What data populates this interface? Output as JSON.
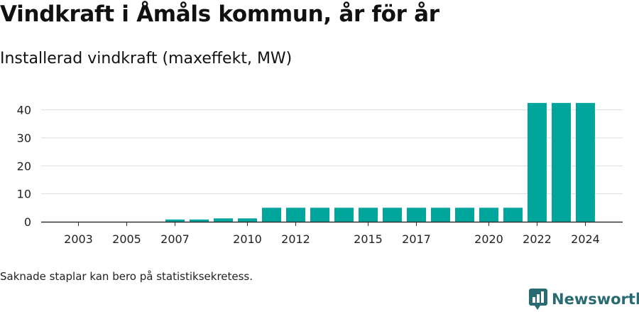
{
  "title": "Vindkraft i Åmåls kommun, år för år",
  "subtitle": "Installerad vindkraft (maxeffekt, MW)",
  "note": "Saknade staplar kan bero på statistiksekretess.",
  "brand": "Newsworthy",
  "colors": {
    "bar": "#00a59b",
    "grid": "#dddddd",
    "axis": "#333333",
    "brand": "#2a6b73"
  },
  "chart_data": {
    "type": "bar",
    "categories": [
      "2002",
      "2003",
      "2004",
      "2005",
      "2006",
      "2007",
      "2008",
      "2009",
      "2010",
      "2011",
      "2012",
      "2013",
      "2014",
      "2015",
      "2016",
      "2017",
      "2018",
      "2019",
      "2020",
      "2021",
      "2022",
      "2023",
      "2024"
    ],
    "values": [
      0,
      0,
      0,
      0,
      0,
      0.8,
      0.8,
      1.2,
      1.2,
      5.0,
      5.0,
      5.0,
      5.0,
      5.0,
      5.0,
      5.0,
      5.0,
      5.0,
      5.0,
      5.0,
      42.5,
      42.5,
      42.5
    ],
    "x_tick_labels": [
      "2003",
      "2005",
      "2007",
      "2010",
      "2012",
      "2015",
      "2017",
      "2020",
      "2022",
      "2024"
    ],
    "y_ticks": [
      0,
      10,
      20,
      30,
      40
    ],
    "ylim": [
      0,
      45
    ],
    "grid": true
  }
}
